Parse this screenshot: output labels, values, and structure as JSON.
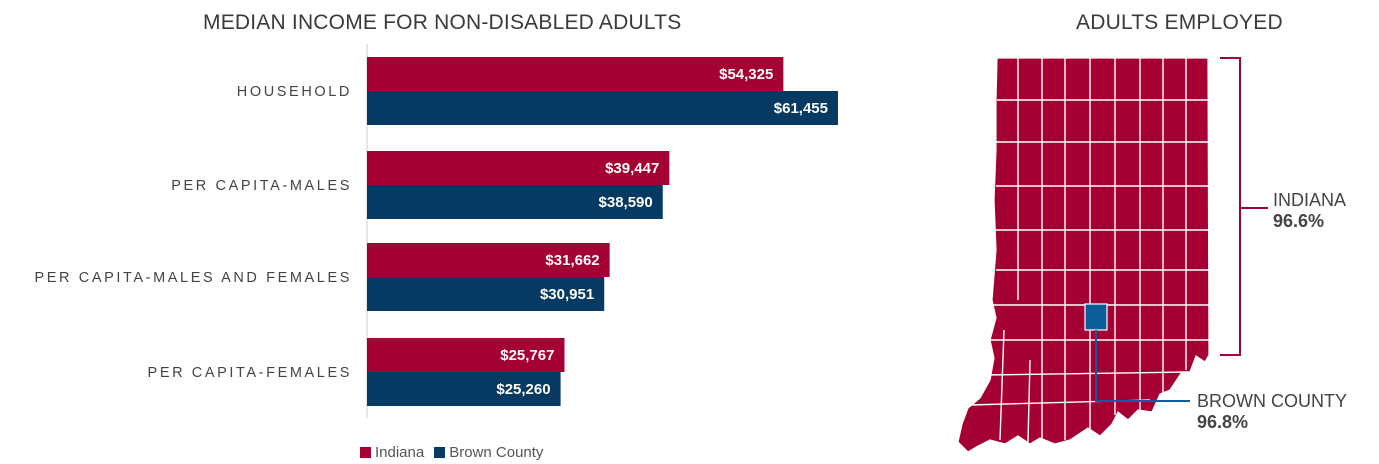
{
  "bar_title": "MEDIAN INCOME FOR NON-DISABLED ADULTS",
  "map_title": "ADULTS EMPLOYED",
  "colors": {
    "indiana": "#a50034",
    "brown_county": "#063a63",
    "brown_county_map": "#0b5e99"
  },
  "chart_data": {
    "type": "bar",
    "orientation": "horizontal",
    "title": "MEDIAN INCOME FOR NON-DISABLED ADULTS",
    "categories": [
      "HOUSEHOLD",
      "PER CAPITA-MALES",
      "PER CAPITA-MALES AND FEMALES",
      "PER CAPITA-FEMALES"
    ],
    "series": [
      {
        "name": "Indiana",
        "values": [
          54325,
          39447,
          31662,
          25767
        ],
        "labels": [
          "$54,325",
          "$39,447",
          "$31,662",
          "$25,767"
        ]
      },
      {
        "name": "Brown County",
        "values": [
          61455,
          38590,
          30951,
          25260
        ],
        "labels": [
          "$61,455",
          "$38,590",
          "$30,951",
          "$25,260"
        ]
      }
    ],
    "xlim": [
      0,
      65000
    ],
    "legend_position": "bottom-left"
  },
  "legend": [
    {
      "label": "Indiana",
      "color": "#a50034"
    },
    {
      "label": "Brown County",
      "color": "#063a63"
    }
  ],
  "map": {
    "state_name": "INDIANA",
    "state_value": "96.6%",
    "county_name": "BROWN COUNTY",
    "county_value": "96.8%"
  }
}
